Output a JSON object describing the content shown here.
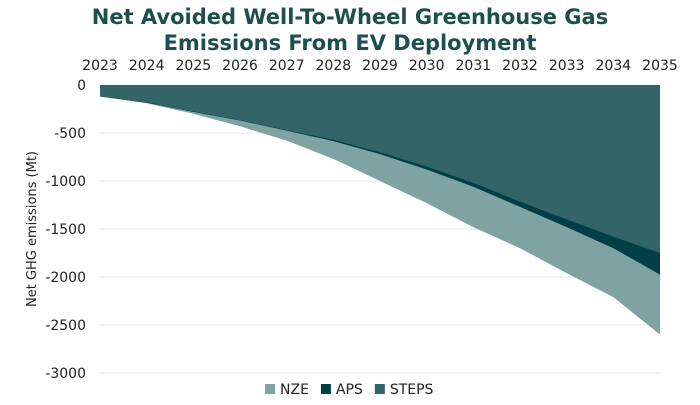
{
  "chart_data": {
    "type": "area",
    "title": "Net Avoided Well-To-Wheel Greenhouse Gas Emissions From EV Deployment",
    "title_lines": [
      "Net Avoided Well-To-Wheel Greenhouse Gas",
      "Emissions From EV Deployment"
    ],
    "xlabel": "",
    "ylabel": "Net GHG emissions (Mt)",
    "x": [
      2023,
      2024,
      2025,
      2026,
      2027,
      2028,
      2029,
      2030,
      2031,
      2032,
      2033,
      2034,
      2035
    ],
    "ylim": [
      -3000,
      0
    ],
    "yticks": [
      0,
      -500,
      -1000,
      -1500,
      -2000,
      -2500,
      -3000
    ],
    "x_axis_position": "top",
    "grid": true,
    "legend": "bottom",
    "series": [
      {
        "name": "NZE",
        "color": "#7fa2a2",
        "values": [
          -120,
          -190,
          -300,
          -430,
          -580,
          -770,
          -1000,
          -1230,
          -1480,
          -1700,
          -1960,
          -2210,
          -2600
        ]
      },
      {
        "name": "APS",
        "color": "#003f45",
        "values": [
          -120,
          -185,
          -280,
          -370,
          -475,
          -585,
          -720,
          -880,
          -1060,
          -1270,
          -1480,
          -1700,
          -1975
        ]
      },
      {
        "name": "STEPS",
        "color": "#336468",
        "values": [
          -120,
          -180,
          -275,
          -365,
          -470,
          -570,
          -700,
          -850,
          -1020,
          -1215,
          -1400,
          -1580,
          -1750
        ]
      }
    ]
  }
}
